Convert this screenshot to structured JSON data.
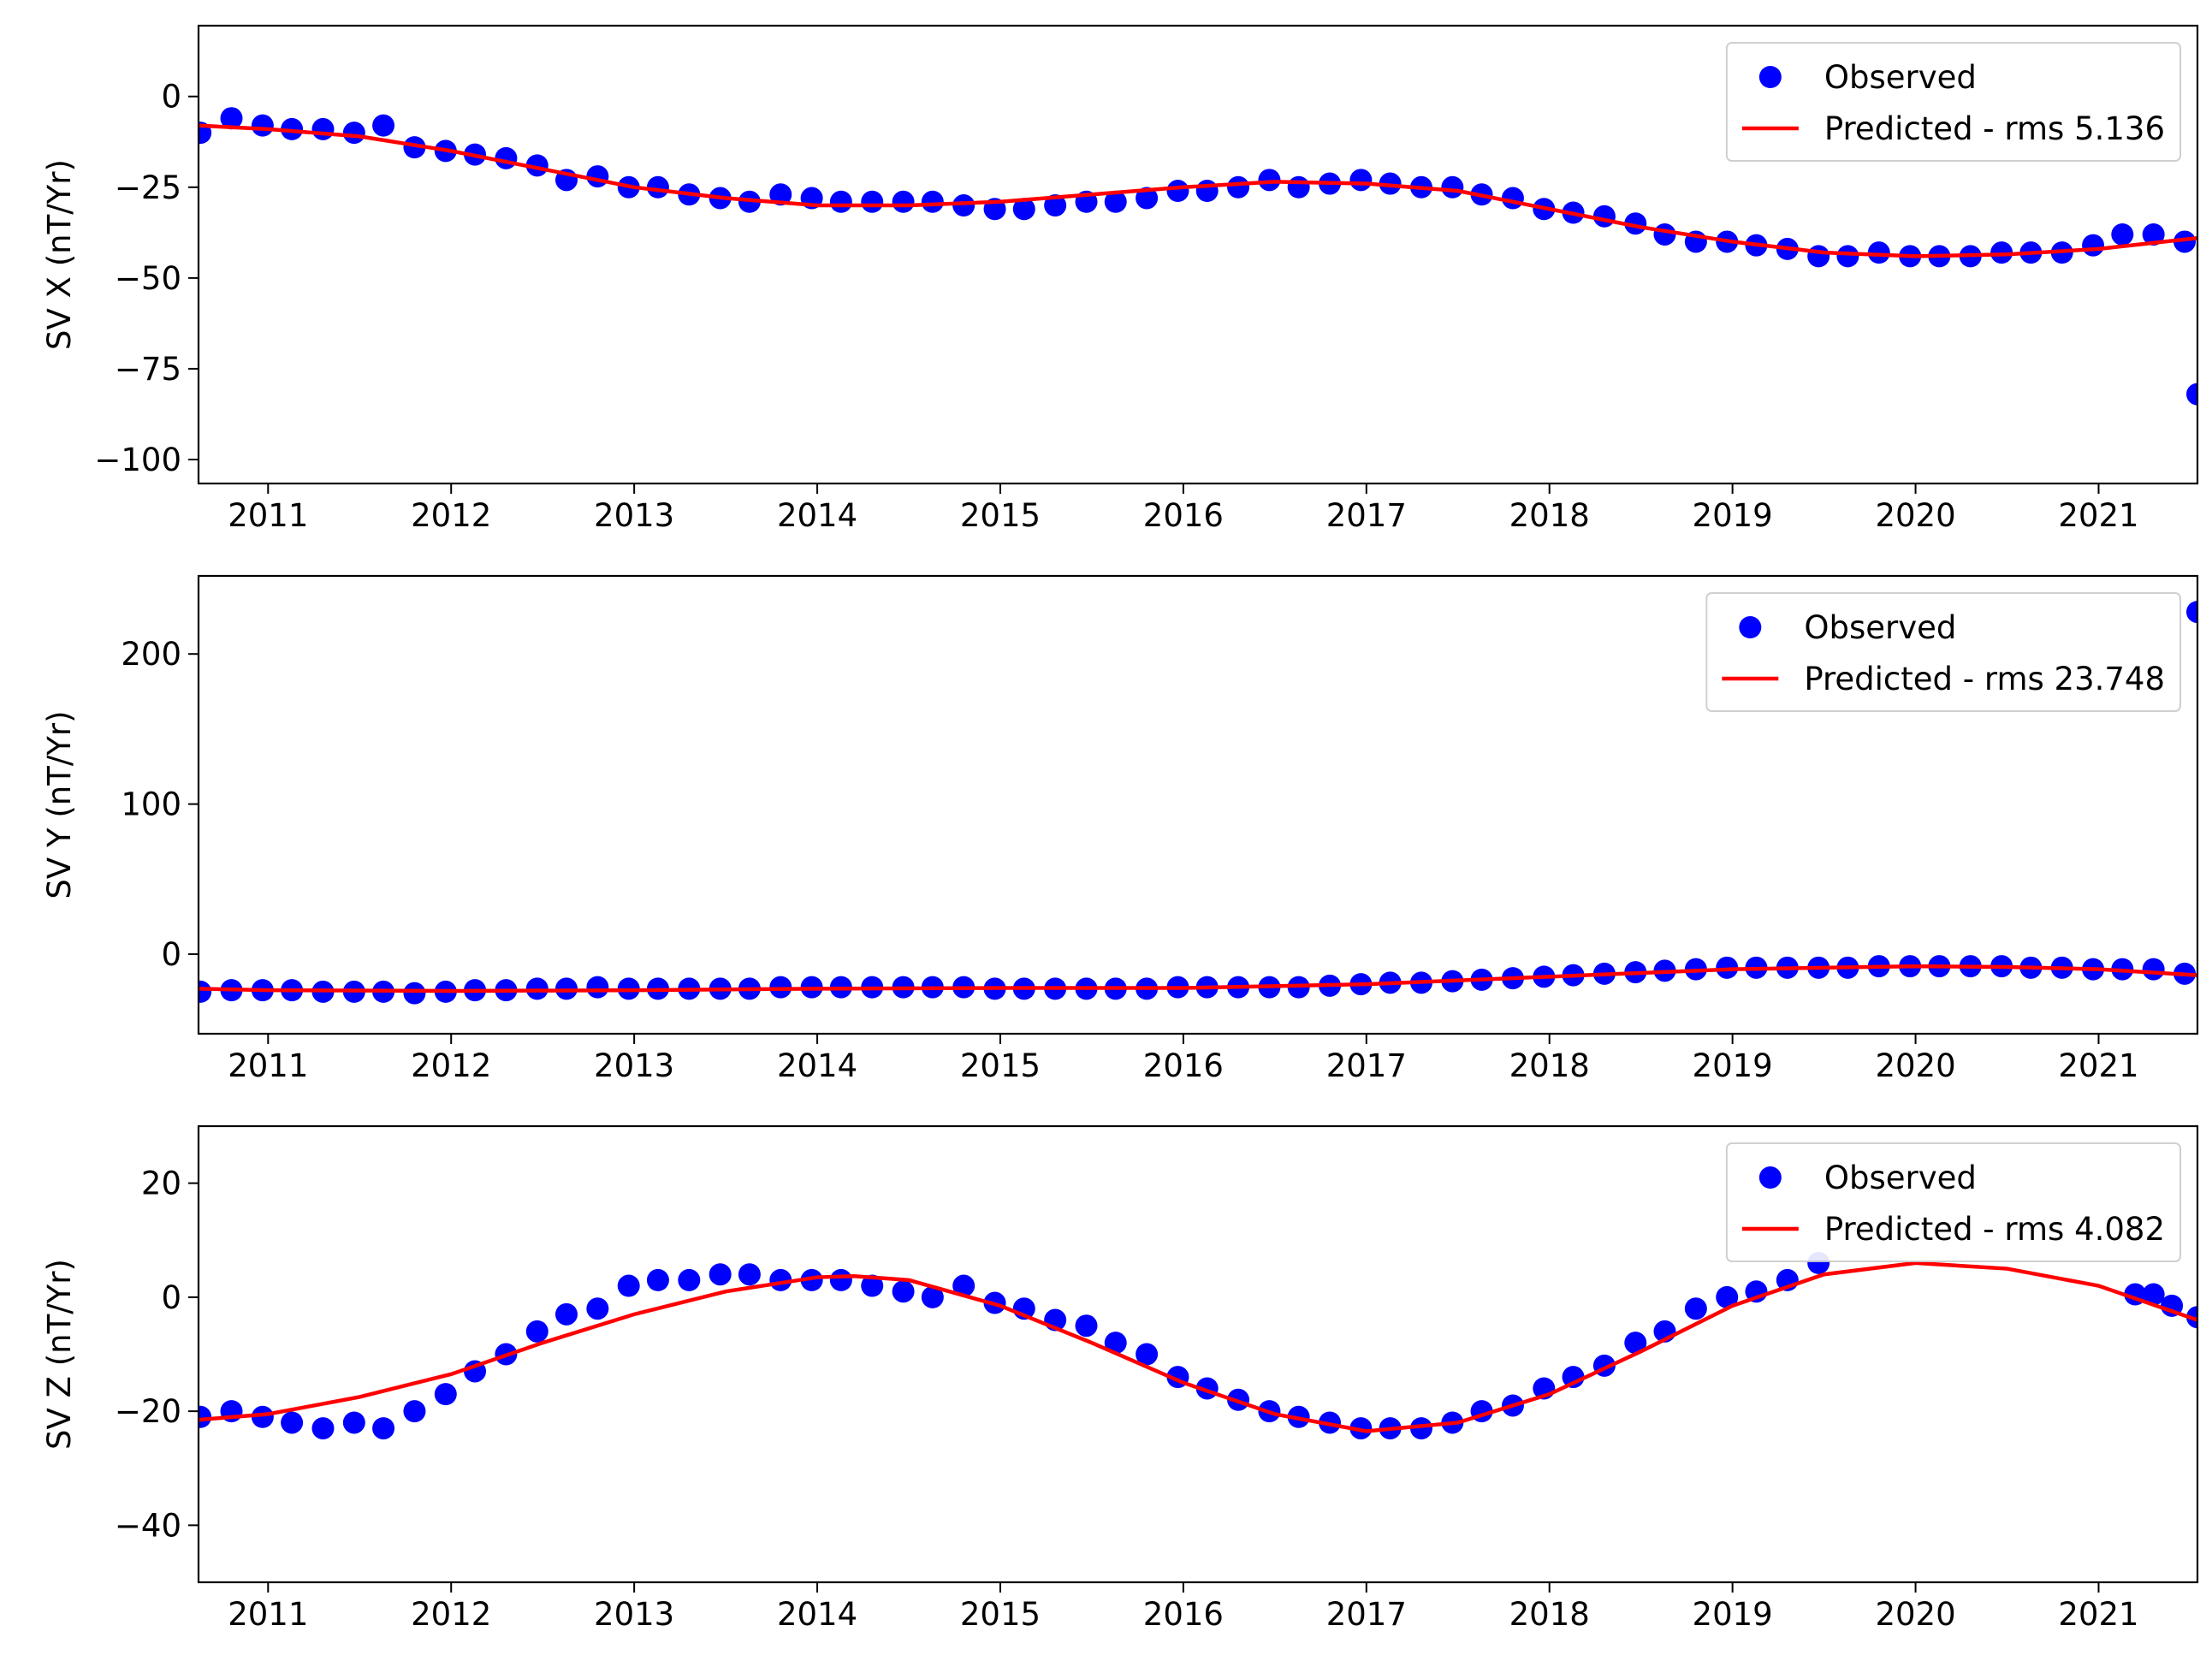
{
  "chart_data": [
    {
      "type": "line",
      "ylabel": "SV X (nT/Yr)",
      "xlim": [
        2010.62,
        2021.54
      ],
      "xticks": [
        2011,
        2012,
        2013,
        2014,
        2015,
        2016,
        2017,
        2018,
        2019,
        2020,
        2021
      ],
      "ylim": [
        -106.6,
        19.5
      ],
      "yticks": [
        {
          "value": -100,
          "label": "−100"
        },
        {
          "value": -75,
          "label": "−75"
        },
        {
          "value": -50,
          "label": "−50"
        },
        {
          "value": -25,
          "label": "−25"
        },
        0
      ],
      "legend": "upper right",
      "series": [
        {
          "name": "Observed",
          "color": "#0000ff",
          "mode": "markers",
          "x": [
            2010.63,
            2010.8,
            2010.97,
            2011.13,
            2011.3,
            2011.47,
            2011.63,
            2011.8,
            2011.97,
            2012.13,
            2012.3,
            2012.47,
            2012.63,
            2012.8,
            2012.97,
            2013.13,
            2013.3,
            2013.47,
            2013.63,
            2013.8,
            2013.97,
            2014.13,
            2014.3,
            2014.47,
            2014.63,
            2014.8,
            2014.97,
            2015.13,
            2015.3,
            2015.47,
            2015.63,
            2015.8,
            2015.97,
            2016.13,
            2016.3,
            2016.47,
            2016.63,
            2016.8,
            2016.97,
            2017.13,
            2017.3,
            2017.47,
            2017.63,
            2017.8,
            2017.97,
            2018.13,
            2018.3,
            2018.47,
            2018.63,
            2018.8,
            2018.97,
            2019.13,
            2019.3,
            2019.47,
            2019.63,
            2019.8,
            2019.97,
            2020.13,
            2020.3,
            2020.47,
            2020.63,
            2020.8,
            2020.97,
            2021.13,
            2021.3,
            2021.47,
            2021.54
          ],
          "values": [
            -10,
            -6,
            -8,
            -9,
            -9,
            -10,
            -8,
            -14,
            -15,
            -16,
            -17,
            -19,
            -23,
            -22,
            -25,
            -25,
            -27,
            -28,
            -29,
            -27,
            -28,
            -29,
            -29,
            -29,
            -29,
            -30,
            -31,
            -31,
            -30,
            -29,
            -29,
            -28,
            -26,
            -26,
            -25,
            -23,
            -25,
            -24,
            -23,
            -24,
            -25,
            -25,
            -27,
            -28,
            -31,
            -32,
            -33,
            -35,
            -38,
            -40,
            -40,
            -41,
            -42,
            -44,
            -44,
            -43,
            -44,
            -44,
            -44,
            -43,
            -43,
            -43,
            -41,
            -38,
            -38,
            -40,
            -82
          ]
        },
        {
          "name": "Predicted - rms 5.136",
          "color": "#ff0000",
          "mode": "line",
          "x": [
            2010.62,
            2011,
            2011.5,
            2012,
            2012.5,
            2013,
            2013.5,
            2014,
            2014.5,
            2015,
            2015.5,
            2016,
            2016.5,
            2017,
            2017.5,
            2018,
            2018.5,
            2019,
            2019.5,
            2020,
            2020.5,
            2021,
            2021.54
          ],
          "values": [
            -8,
            -9,
            -11,
            -15,
            -20,
            -25,
            -28,
            -30,
            -30,
            -29,
            -27,
            -25,
            -23.5,
            -24,
            -26,
            -31,
            -36,
            -40,
            -43,
            -44,
            -43.5,
            -42,
            -39
          ]
        }
      ]
    },
    {
      "type": "line",
      "ylabel": "SV Y (nT/Yr)",
      "xlim": [
        2010.62,
        2021.54
      ],
      "xticks": [
        2011,
        2012,
        2013,
        2014,
        2015,
        2016,
        2017,
        2018,
        2019,
        2020,
        2021
      ],
      "ylim": [
        -53,
        252
      ],
      "yticks": [
        0,
        100,
        200
      ],
      "legend": "upper right",
      "series": [
        {
          "name": "Observed",
          "color": "#0000ff",
          "mode": "markers",
          "x": [
            2010.63,
            2010.8,
            2010.97,
            2011.13,
            2011.3,
            2011.47,
            2011.63,
            2011.8,
            2011.97,
            2012.13,
            2012.3,
            2012.47,
            2012.63,
            2012.8,
            2012.97,
            2013.13,
            2013.3,
            2013.47,
            2013.63,
            2013.8,
            2013.97,
            2014.13,
            2014.3,
            2014.47,
            2014.63,
            2014.8,
            2014.97,
            2015.13,
            2015.3,
            2015.47,
            2015.63,
            2015.8,
            2015.97,
            2016.13,
            2016.3,
            2016.47,
            2016.63,
            2016.8,
            2016.97,
            2017.13,
            2017.3,
            2017.47,
            2017.63,
            2017.8,
            2017.97,
            2018.13,
            2018.3,
            2018.47,
            2018.63,
            2018.8,
            2018.97,
            2019.13,
            2019.3,
            2019.47,
            2019.63,
            2019.8,
            2019.97,
            2020.13,
            2020.3,
            2020.47,
            2020.63,
            2020.8,
            2020.97,
            2021.13,
            2021.3,
            2021.47,
            2021.54
          ],
          "values": [
            -25,
            -24,
            -24,
            -24,
            -25,
            -25,
            -25,
            -26,
            -25,
            -24,
            -24,
            -23,
            -23,
            -22,
            -23,
            -23,
            -23,
            -23,
            -23,
            -22,
            -22,
            -22,
            -22,
            -22,
            -22,
            -22,
            -23,
            -23,
            -23,
            -23,
            -23,
            -23,
            -22,
            -22,
            -22,
            -22,
            -22,
            -21,
            -20,
            -19,
            -19,
            -18,
            -17,
            -16,
            -15,
            -14,
            -13,
            -12,
            -11,
            -10,
            -9,
            -9,
            -9,
            -9,
            -9,
            -8,
            -8,
            -8,
            -8,
            -8,
            -9,
            -9,
            -10,
            -10,
            -10,
            -13,
            228
          ]
        },
        {
          "name": "Predicted - rms 23.748",
          "color": "#ff0000",
          "mode": "line",
          "x": [
            2010.62,
            2011,
            2012,
            2013,
            2014,
            2015,
            2016,
            2017,
            2018,
            2019,
            2020,
            2020.5,
            2021,
            2021.54
          ],
          "values": [
            -23,
            -24,
            -24.5,
            -24,
            -23,
            -22.5,
            -22.5,
            -20,
            -15,
            -10,
            -8,
            -8.5,
            -10,
            -14
          ]
        }
      ]
    },
    {
      "type": "line",
      "ylabel": "SV Z (nT/Yr)",
      "xlim": [
        2010.62,
        2021.54
      ],
      "xticks": [
        2011,
        2012,
        2013,
        2014,
        2015,
        2016,
        2017,
        2018,
        2019,
        2020,
        2021
      ],
      "ylim": [
        -50,
        30
      ],
      "yticks": [
        {
          "value": -40,
          "label": "−40"
        },
        {
          "value": -20,
          "label": "−20"
        },
        0,
        20
      ],
      "legend": "upper right",
      "series": [
        {
          "name": "Observed",
          "color": "#0000ff",
          "mode": "markers",
          "x": [
            2010.63,
            2010.8,
            2010.97,
            2011.13,
            2011.3,
            2011.47,
            2011.63,
            2011.8,
            2011.97,
            2012.13,
            2012.3,
            2012.47,
            2012.63,
            2012.8,
            2012.97,
            2013.13,
            2013.3,
            2013.47,
            2013.63,
            2013.8,
            2013.97,
            2014.13,
            2014.3,
            2014.47,
            2014.63,
            2014.8,
            2014.97,
            2015.13,
            2015.3,
            2015.47,
            2015.63,
            2015.8,
            2015.97,
            2016.13,
            2016.3,
            2016.47,
            2016.63,
            2016.8,
            2016.97,
            2017.13,
            2017.3,
            2017.47,
            2017.63,
            2017.8,
            2017.97,
            2018.13,
            2018.3,
            2018.47,
            2018.63,
            2018.8,
            2018.97,
            2019.13,
            2019.3,
            2019.47,
            2021.2,
            2021.3,
            2021.4,
            2021.54
          ],
          "values": [
            -21,
            -20,
            -21,
            -22,
            -23,
            -22,
            -23,
            -20,
            -17,
            -13,
            -10,
            -6,
            -3,
            -2,
            2,
            3,
            3,
            4,
            4,
            3,
            3,
            3,
            2,
            1,
            0,
            2,
            -1,
            -2,
            -4,
            -5,
            -8,
            -10,
            -14,
            -16,
            -18,
            -20,
            -21,
            -22,
            -23,
            -23,
            -23,
            -22,
            -20,
            -19,
            -16,
            -14,
            -12,
            -8,
            -6,
            -2,
            0,
            1,
            3,
            6,
            0.5,
            0.5,
            -1.5,
            -3.5
          ]
        },
        {
          "name": "Predicted - rms 4.082",
          "color": "#ff0000",
          "mode": "line",
          "x": [
            2010.62,
            2011,
            2011.5,
            2012,
            2012.5,
            2013,
            2013.5,
            2014,
            2014.2,
            2014.5,
            2015,
            2015.5,
            2016,
            2016.5,
            2017,
            2017.5,
            2018,
            2018.5,
            2019,
            2019.5,
            2020,
            2020.5,
            2021,
            2021.54
          ],
          "values": [
            -21.5,
            -20.5,
            -17.5,
            -13.5,
            -8,
            -3,
            1,
            3.5,
            3.7,
            3,
            -1.5,
            -8,
            -15,
            -20.5,
            -23.5,
            -22,
            -17,
            -9.5,
            -1.5,
            4,
            6,
            5,
            2,
            -4
          ]
        }
      ]
    }
  ]
}
